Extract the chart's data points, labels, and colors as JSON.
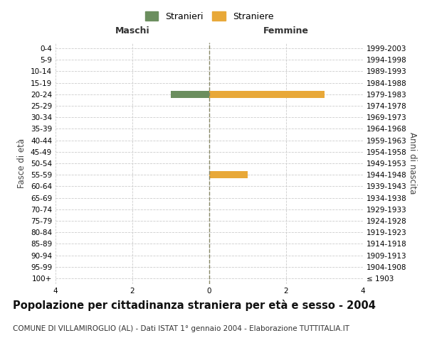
{
  "age_groups": [
    "100+",
    "95-99",
    "90-94",
    "85-89",
    "80-84",
    "75-79",
    "70-74",
    "65-69",
    "60-64",
    "55-59",
    "50-54",
    "45-49",
    "40-44",
    "35-39",
    "30-34",
    "25-29",
    "20-24",
    "15-19",
    "10-14",
    "5-9",
    "0-4"
  ],
  "birth_years": [
    "≤ 1903",
    "1904-1908",
    "1909-1913",
    "1914-1918",
    "1919-1923",
    "1924-1928",
    "1929-1933",
    "1934-1938",
    "1939-1943",
    "1944-1948",
    "1949-1953",
    "1954-1958",
    "1959-1963",
    "1964-1968",
    "1969-1973",
    "1974-1978",
    "1979-1983",
    "1984-1988",
    "1989-1993",
    "1994-1998",
    "1999-2003"
  ],
  "males": [
    0,
    0,
    0,
    0,
    0,
    0,
    0,
    0,
    0,
    0,
    0,
    0,
    0,
    0,
    0,
    0,
    1,
    0,
    0,
    0,
    0
  ],
  "females": [
    0,
    0,
    0,
    0,
    0,
    0,
    0,
    0,
    0,
    1,
    0,
    0,
    0,
    0,
    0,
    0,
    3,
    0,
    0,
    0,
    0
  ],
  "male_color": "#6b8e5e",
  "female_color": "#e8a838",
  "male_label": "Stranieri",
  "female_label": "Straniere",
  "header_left": "Maschi",
  "header_right": "Femmine",
  "ylabel_left": "Fasce di età",
  "ylabel_right": "Anni di nascita",
  "xlim": 4,
  "title": "Popolazione per cittadinanza straniera per età e sesso - 2004",
  "subtitle": "COMUNE DI VILLAMIROGLIO (AL) - Dati ISTAT 1° gennaio 2004 - Elaborazione TUTTITALIA.IT",
  "bg_color": "#ffffff",
  "grid_color": "#cccccc",
  "centerline_color": "#888866",
  "tick_fontsize": 7.5,
  "header_fontsize": 9,
  "ylabel_fontsize": 8.5,
  "legend_fontsize": 9,
  "title_fontsize": 10.5,
  "subtitle_fontsize": 7.5
}
